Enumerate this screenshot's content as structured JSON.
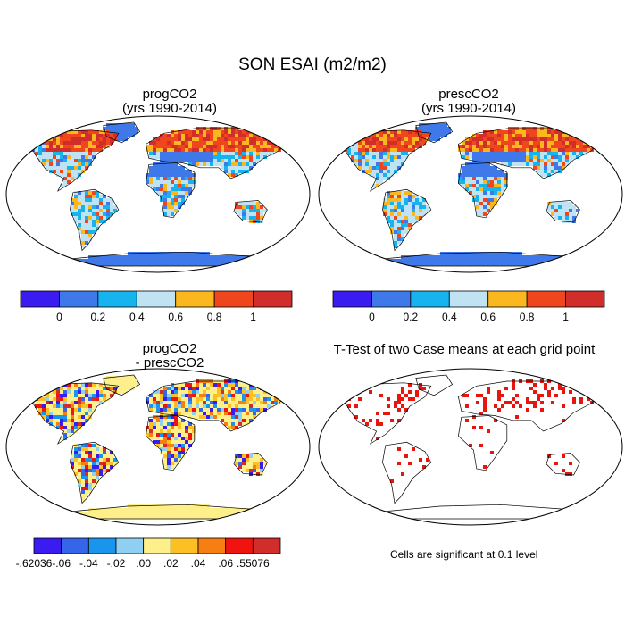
{
  "title": "SON ESAI (m2/m2)",
  "panels": [
    {
      "id": "p1",
      "title_line1": "progCO2",
      "title_line2": "(yrs 1990-2014)"
    },
    {
      "id": "p2",
      "title_line1": "prescCO2",
      "title_line2": "(yrs 1990-2014)"
    },
    {
      "id": "p3",
      "title_line1": "progCO2",
      "title_line2": "- prescCO2"
    },
    {
      "id": "p4",
      "title_line1": "T-Test of two Case means at each grid point",
      "title_line2": ""
    }
  ],
  "colorbar_abs": {
    "colors": [
      "#3a1cf0",
      "#3f78e8",
      "#17b3ee",
      "#bfe3f2",
      "#fbb81e",
      "#f0461d",
      "#d12d2a"
    ],
    "labels": [
      "0",
      "0.2",
      "0.4",
      "0.6",
      "0.8",
      "1"
    ]
  },
  "colorbar_diff": {
    "colors": [
      "#3a1cf0",
      "#3565e8",
      "#1a95ee",
      "#8fd0f2",
      "#fdf08a",
      "#fcbf24",
      "#f77f12",
      "#f1140e",
      "#d12d2a"
    ],
    "labels": [
      "-.62036",
      "-.06",
      "-.04",
      "-.02",
      ".00",
      ".02",
      ".04",
      ".06",
      ".55076"
    ]
  },
  "significance_note": "Cells are significant at 0.1 level",
  "chart_data": [
    {
      "type": "heatmap",
      "title": "progCO2 (yrs 1990-2014)",
      "variable": "SON ESAI (m2/m2)",
      "levels": [
        0,
        0.2,
        0.4,
        0.6,
        0.8,
        1
      ],
      "level_colors": [
        "#3a1cf0",
        "#3f78e8",
        "#17b3ee",
        "#bfe3f2",
        "#fbb81e",
        "#f0461d",
        "#d12d2a"
      ],
      "projection": "Robinson"
    },
    {
      "type": "heatmap",
      "title": "prescCO2 (yrs 1990-2014)",
      "variable": "SON ESAI (m2/m2)",
      "levels": [
        0,
        0.2,
        0.4,
        0.6,
        0.8,
        1
      ],
      "level_colors": [
        "#3a1cf0",
        "#3f78e8",
        "#17b3ee",
        "#bfe3f2",
        "#fbb81e",
        "#f0461d",
        "#d12d2a"
      ],
      "projection": "Robinson"
    },
    {
      "type": "heatmap",
      "title": "progCO2 - prescCO2",
      "levels": [
        -0.62036,
        -0.06,
        -0.04,
        -0.02,
        0.0,
        0.02,
        0.04,
        0.06,
        0.55076
      ],
      "level_colors": [
        "#3a1cf0",
        "#3565e8",
        "#1a95ee",
        "#8fd0f2",
        "#fdf08a",
        "#fcbf24",
        "#f77f12",
        "#f1140e",
        "#d12d2a"
      ],
      "projection": "Robinson"
    },
    {
      "type": "heatmap",
      "title": "T-Test of two Case means at each grid point",
      "significance_level": 0.1,
      "significant_color": "#e8150e",
      "projection": "Robinson"
    }
  ]
}
